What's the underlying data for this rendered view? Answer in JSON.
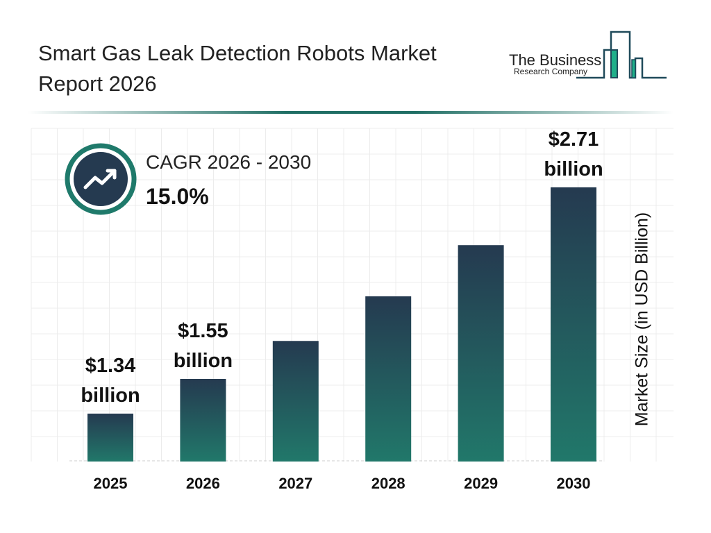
{
  "header": {
    "title": "Smart Gas Leak Detection Robots Market Report 2026"
  },
  "logo": {
    "line1": "The Business",
    "line2": "Research Company"
  },
  "cagr": {
    "label": "CAGR 2026 - 2030",
    "value": "15.0%",
    "icon": "trending-up-icon"
  },
  "chart_data": {
    "type": "bar",
    "categories": [
      "2025",
      "2026",
      "2027",
      "2028",
      "2029",
      "2030"
    ],
    "values": [
      1.34,
      1.55,
      1.78,
      2.05,
      2.36,
      2.71
    ],
    "data_labels": [
      [
        "$1.34",
        "billion"
      ],
      [
        "$1.55",
        "billion"
      ],
      null,
      null,
      null,
      [
        "$2.71",
        "billion"
      ]
    ],
    "xlabel": "",
    "ylabel": "Market Size (in USD Billion)",
    "grid": true,
    "colors": {
      "bar_top": "#253a50",
      "bar_bottom": "#21786a"
    }
  }
}
